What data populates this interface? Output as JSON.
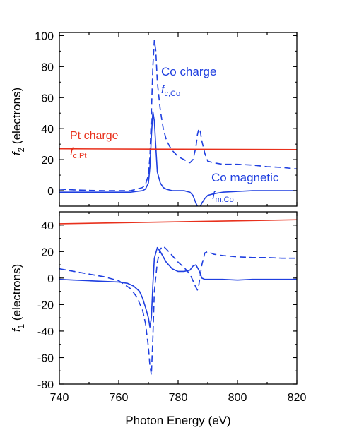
{
  "chart_data": [
    {
      "type": "line",
      "panel": "top",
      "ylabel_main": "f",
      "ylabel_sub": "2",
      "ylabel_unit": "(electrons)",
      "xlim": [
        740,
        820
      ],
      "ylim": [
        -10,
        102
      ],
      "yticks": [
        "0",
        "20",
        "40",
        "60",
        "80",
        "100"
      ],
      "ytick_values": [
        0,
        20,
        40,
        60,
        80,
        100
      ],
      "colors": {
        "co": "#1f3fe0",
        "pt": "#e8301c"
      },
      "annotations": {
        "co_charge": "Co charge",
        "co_charge_sym_main": "f",
        "co_charge_sym_sub": "c,Co",
        "pt_charge": "Pt charge",
        "pt_charge_sym_main": "f",
        "pt_charge_sym_sub": "c,Pt",
        "co_magnetic": "Co magnetic",
        "co_magnetic_sym_main": "f",
        "co_magnetic_sym_sub": "m,Co"
      },
      "series": [
        {
          "style": "dashed",
          "color": "#1f3fe0",
          "x": [
            740,
            745,
            750,
            755,
            760,
            764,
            766,
            768,
            769,
            770,
            770.5,
            771,
            771.5,
            772,
            772.5,
            773,
            774,
            775,
            776,
            777,
            778,
            779,
            780,
            781,
            782,
            783,
            784,
            785,
            786,
            786.5,
            787,
            787.5,
            788,
            789,
            790,
            792,
            795,
            800,
            805,
            810,
            815,
            820
          ],
          "y": [
            1,
            0.5,
            0.2,
            0,
            0,
            0,
            1,
            2,
            4,
            10,
            22,
            50,
            80,
            97,
            90,
            70,
            52,
            40,
            33,
            29,
            26,
            24,
            22,
            21,
            20,
            19,
            18,
            20,
            28,
            36,
            40,
            38,
            32,
            24,
            19,
            18,
            17,
            17,
            16.5,
            15.5,
            15,
            14
          ]
        },
        {
          "style": "solid",
          "color": "#1f3fe0",
          "x": [
            740,
            745,
            750,
            755,
            760,
            764,
            766,
            768,
            769,
            770,
            770.5,
            771,
            771.5,
            772,
            772.5,
            773,
            774,
            775,
            776,
            778,
            780,
            782,
            784,
            785,
            786,
            787,
            787.5,
            788,
            789,
            790,
            792,
            795,
            800,
            805,
            810,
            815,
            820
          ],
          "y": [
            -1,
            -1,
            -1,
            -1,
            -1,
            -1,
            -0.5,
            0,
            1,
            5,
            15,
            35,
            51,
            45,
            28,
            12,
            5,
            2,
            1,
            0,
            0,
            0,
            -1,
            -3,
            -8,
            -12,
            -10,
            -8,
            -5,
            -3,
            -2,
            -1,
            -0.5,
            0,
            0,
            0,
            0
          ]
        },
        {
          "style": "solid",
          "color": "#e8301c",
          "x": [
            740,
            820
          ],
          "y": [
            27,
            26.5
          ]
        }
      ]
    },
    {
      "type": "line",
      "panel": "bottom",
      "ylabel_main": "f",
      "ylabel_sub": "1",
      "ylabel_unit": "(electrons)",
      "xlabel": "Photon Energy (eV)",
      "xlim": [
        740,
        820
      ],
      "ylim": [
        -80,
        50
      ],
      "xticks": [
        "740",
        "760",
        "780",
        "800",
        "820"
      ],
      "xtick_values": [
        740,
        760,
        780,
        800,
        820
      ],
      "yticks": [
        "-80",
        "-60",
        "-40",
        "-20",
        "0",
        "20",
        "40"
      ],
      "ytick_values": [
        -80,
        -60,
        -40,
        -20,
        0,
        20,
        40
      ],
      "series": [
        {
          "style": "dashed",
          "color": "#1f3fe0",
          "x": [
            740,
            745,
            750,
            755,
            760,
            764,
            766,
            768,
            769,
            770,
            770.5,
            771,
            771.5,
            772,
            773,
            774,
            775,
            776,
            778,
            780,
            782,
            784,
            785,
            786,
            786.5,
            787,
            788,
            789,
            790,
            792,
            795,
            800,
            805,
            810,
            815,
            820
          ],
          "y": [
            7,
            5,
            3,
            1,
            -2,
            -8,
            -14,
            -24,
            -34,
            -52,
            -66,
            -73,
            -45,
            -10,
            12,
            22,
            24,
            22,
            17,
            12,
            8,
            3,
            -2,
            -7,
            -9,
            -5,
            10,
            19,
            20,
            18,
            17,
            16,
            15.5,
            15.5,
            15,
            15
          ]
        },
        {
          "style": "solid",
          "color": "#1f3fe0",
          "x": [
            740,
            745,
            750,
            755,
            760,
            763,
            765,
            767,
            768,
            769,
            770,
            770.5,
            771,
            771.5,
            772,
            773,
            774,
            776,
            778,
            780,
            782,
            784,
            785,
            786,
            787,
            788,
            789,
            790,
            792,
            795,
            800,
            805,
            810,
            815,
            820
          ],
          "y": [
            -1,
            -1.5,
            -2,
            -2.5,
            -3,
            -4,
            -6,
            -10,
            -15,
            -22,
            -30,
            -37,
            -30,
            -5,
            15,
            23,
            20,
            12,
            7,
            5,
            5,
            6,
            9,
            10,
            6,
            0,
            -1,
            -1,
            -1,
            -1,
            -1.5,
            -1,
            -1,
            -1,
            -1
          ]
        },
        {
          "style": "solid",
          "color": "#e8301c",
          "x": [
            740,
            820
          ],
          "y": [
            41,
            44
          ]
        }
      ]
    }
  ]
}
